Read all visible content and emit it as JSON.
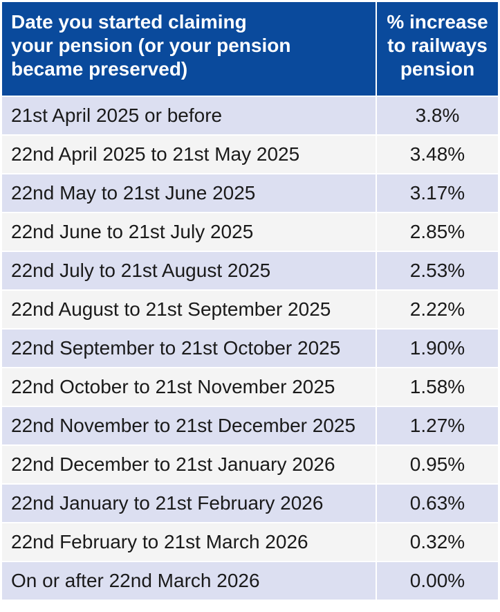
{
  "header": {
    "col1_lines": [
      "Date you started claiming",
      "your pension (or your pension",
      "became preserved)"
    ],
    "col2_lines": [
      "% increase",
      "to railways",
      "pension"
    ]
  },
  "rows": [
    {
      "date": "21st April 2025 or before",
      "increase": "3.8%"
    },
    {
      "date": "22nd April 2025 to 21st May 2025",
      "increase": "3.48%"
    },
    {
      "date": "22nd May to 21st June 2025",
      "increase": "3.17%"
    },
    {
      "date": "22nd June to 21st July 2025",
      "increase": "2.85%"
    },
    {
      "date": "22nd July to 21st August 2025",
      "increase": "2.53%"
    },
    {
      "date": "22nd August to 21st September 2025",
      "increase": "2.22%"
    },
    {
      "date": "22nd September to 21st October 2025",
      "increase": "1.90%"
    },
    {
      "date": "22nd October to 21st November 2025",
      "increase": "1.58%"
    },
    {
      "date": "22nd November to 21st December 2025",
      "increase": "1.27%"
    },
    {
      "date": "22nd December to 21st January 2026",
      "increase": "0.95%"
    },
    {
      "date": "22nd January to 21st February 2026",
      "increase": "0.63%"
    },
    {
      "date": "22nd February to 21st March 2026",
      "increase": "0.32%"
    },
    {
      "date": "On or after 22nd March 2026",
      "increase": "0.00%"
    }
  ],
  "colors": {
    "header_bg": "#0a4a9c",
    "row_odd_bg": "#dcdff1",
    "row_even_bg": "#f4f4f4"
  }
}
